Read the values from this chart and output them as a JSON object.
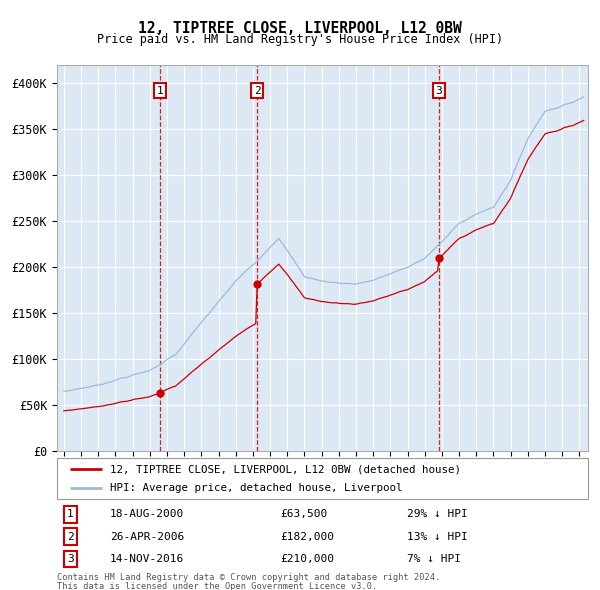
{
  "title": "12, TIPTREE CLOSE, LIVERPOOL, L12 0BW",
  "subtitle": "Price paid vs. HM Land Registry's House Price Index (HPI)",
  "ylim": [
    0,
    420000
  ],
  "yticks": [
    0,
    50000,
    100000,
    150000,
    200000,
    250000,
    300000,
    350000,
    400000
  ],
  "ytick_labels": [
    "£0",
    "£50K",
    "£100K",
    "£150K",
    "£200K",
    "£250K",
    "£300K",
    "£350K",
    "£400K"
  ],
  "sale1_date": "18-AUG-2000",
  "sale1_price": 63500,
  "sale1_hpi_pct": "29% ↓ HPI",
  "sale2_date": "26-APR-2006",
  "sale2_price": 182000,
  "sale2_hpi_pct": "13% ↓ HPI",
  "sale3_date": "14-NOV-2016",
  "sale3_price": 210000,
  "sale3_hpi_pct": "7% ↓ HPI",
  "legend_red": "12, TIPTREE CLOSE, LIVERPOOL, L12 0BW (detached house)",
  "legend_blue": "HPI: Average price, detached house, Liverpool",
  "footnote1": "Contains HM Land Registry data © Crown copyright and database right 2024.",
  "footnote2": "This data is licensed under the Open Government Licence v3.0.",
  "bg_color": "#dde8f5",
  "grid_color": "#ffffff",
  "red_line_color": "#cc0000",
  "blue_line_color": "#99bbdd",
  "dashed_line_color": "#cc0000"
}
